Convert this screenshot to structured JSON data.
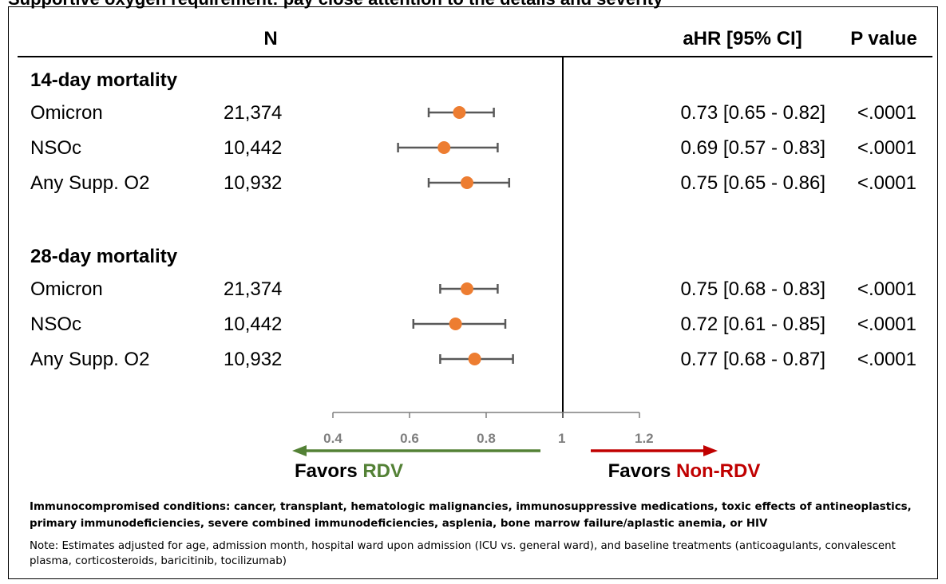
{
  "title": "Supportive oxygen requirement: pay close attention to the details and severity",
  "columns": {
    "n": "N",
    "ahr": "aHR [95% CI]",
    "p": "P value"
  },
  "colors": {
    "point": "#ed7d31",
    "whisker": "#595959",
    "ref_line": "#000000",
    "favor_rdv": "#538135",
    "favor_non_rdv": "#c00000",
    "axis": "#7f7f7f"
  },
  "favors": {
    "rdv_prefix": "Favors ",
    "rdv_label": "RDV",
    "non_rdv_prefix": "Favors ",
    "non_rdv_label": "Non-RDV"
  },
  "footnote_conditions": "Immunocompromised conditions: cancer, transplant, hematologic malignancies, immunosuppressive medications, toxic effects of antineoplastics, primary immunodeficiencies, severe combined immunodeficiencies, asplenia, bone marrow failure/aplastic anemia, or HIV",
  "footnote_note": "Note: Estimates adjusted for age, admission month, hospital ward upon admission (ICU vs. general ward), and baseline treatments (anticoagulants, convalescent plasma, corticosteroids, baricitinib, tocilizumab)",
  "chart_data": {
    "type": "forest",
    "x_ticks": [
      "0.4",
      "0.6",
      "0.8",
      "1",
      "1.2"
    ],
    "xlim": [
      0.4,
      1.2
    ],
    "reference_line": 1,
    "groups": [
      {
        "label": "14-day mortality",
        "rows": [
          {
            "label": "Omicron",
            "n": "21,374",
            "hr": 0.73,
            "lo": 0.65,
            "hi": 0.82,
            "ci_text": "0.73 [0.65 - 0.82]",
            "p": "<.0001"
          },
          {
            "label": "NSOc",
            "n": "10,442",
            "hr": 0.69,
            "lo": 0.57,
            "hi": 0.83,
            "ci_text": "0.69 [0.57 - 0.83]",
            "p": "<.0001"
          },
          {
            "label": "Any Supp. O2",
            "n": "10,932",
            "hr": 0.75,
            "lo": 0.65,
            "hi": 0.86,
            "ci_text": "0.75 [0.65 - 0.86]",
            "p": "<.0001"
          }
        ]
      },
      {
        "label": "28-day mortality",
        "rows": [
          {
            "label": "Omicron",
            "n": "21,374",
            "hr": 0.75,
            "lo": 0.68,
            "hi": 0.83,
            "ci_text": "0.75 [0.68 - 0.83]",
            "p": "<.0001"
          },
          {
            "label": "NSOc",
            "n": "10,442",
            "hr": 0.72,
            "lo": 0.61,
            "hi": 0.85,
            "ci_text": "0.72 [0.61 - 0.85]",
            "p": "<.0001"
          },
          {
            "label": "Any Supp. O2",
            "n": "10,932",
            "hr": 0.77,
            "lo": 0.68,
            "hi": 0.87,
            "ci_text": "0.77 [0.68 - 0.87]",
            "p": "<.0001"
          }
        ]
      }
    ]
  }
}
